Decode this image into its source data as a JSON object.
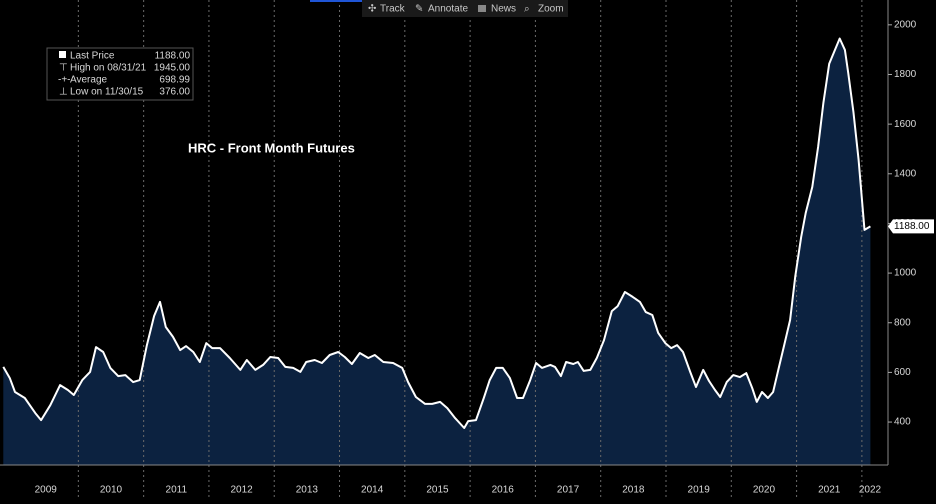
{
  "toolbar": [
    "Track",
    "Annotate",
    "News",
    "Zoom"
  ],
  "chart_data": {
    "type": "area",
    "title": "HRC - Front Month Futures",
    "legend": [
      {
        "name": "Last Price",
        "value": {
          "value": 1188,
          "label": "1188.00"
        }
      },
      {
        "name": "High on 08/31/21",
        "value": {
          "value": 1945,
          "label": "1945.00"
        }
      },
      {
        "name": "Average",
        "value": {
          "value": 698.99,
          "label": "698.99"
        }
      },
      {
        "name": "Low on 11/30/15",
        "value": {
          "value": 376,
          "label": "376.00"
        }
      }
    ],
    "line_color": "#ffffff",
    "fill_color": "#0c2240",
    "x": [
      2008.85,
      2008.95,
      2009.03,
      2009.18,
      2009.34,
      2009.43,
      2009.57,
      2009.72,
      2009.84,
      2009.93,
      2010.06,
      2010.18,
      2010.27,
      2010.38,
      2010.49,
      2010.61,
      2010.72,
      2010.84,
      2010.94,
      2011.05,
      2011.16,
      2011.25,
      2011.34,
      2011.45,
      2011.56,
      2011.65,
      2011.76,
      2011.86,
      2011.96,
      2012.05,
      2012.17,
      2012.32,
      2012.48,
      2012.58,
      2012.71,
      2012.83,
      2012.94,
      2013.06,
      2013.17,
      2013.29,
      2013.4,
      2013.49,
      2013.62,
      2013.73,
      2013.85,
      2013.98,
      2014.08,
      2014.19,
      2014.31,
      2014.44,
      2014.54,
      2014.67,
      2014.82,
      2014.96,
      2015.05,
      2015.17,
      2015.31,
      2015.42,
      2015.54,
      2015.65,
      2015.77,
      2015.91,
      2015.97,
      2016.09,
      2016.21,
      2016.3,
      2016.4,
      2016.5,
      2016.61,
      2016.72,
      2016.81,
      2016.92,
      2017.01,
      2017.1,
      2017.23,
      2017.3,
      2017.39,
      2017.47,
      2017.58,
      2017.65,
      2017.74,
      2017.84,
      2017.94,
      2018.05,
      2018.17,
      2018.26,
      2018.37,
      2018.49,
      2018.6,
      2018.69,
      2018.79,
      2018.88,
      2018.99,
      2019.08,
      2019.17,
      2019.26,
      2019.37,
      2019.46,
      2019.57,
      2019.66,
      2019.75,
      2019.83,
      2019.93,
      2020.03,
      2020.13,
      2020.23,
      2020.32,
      2020.39,
      2020.47,
      2020.56,
      2020.64,
      2020.72,
      2020.81,
      2020.9,
      2020.98,
      2021.07,
      2021.14,
      2021.24,
      2021.33,
      2021.41,
      2021.5,
      2021.66,
      2021.74,
      2021.79,
      2021.87,
      2021.95,
      2022.04,
      2022.13
    ],
    "values": [
      622,
      577,
      521,
      497,
      436,
      408,
      468,
      549,
      529,
      509,
      569,
      602,
      702,
      682,
      618,
      585,
      589,
      561,
      569,
      710,
      827,
      884,
      783,
      743,
      690,
      706,
      682,
      642,
      718,
      698,
      698,
      658,
      610,
      650,
      610,
      630,
      662,
      658,
      622,
      618,
      602,
      642,
      650,
      638,
      670,
      682,
      662,
      634,
      678,
      658,
      670,
      642,
      638,
      618,
      561,
      501,
      473,
      473,
      481,
      456,
      416,
      376,
      404,
      408,
      497,
      569,
      618,
      618,
      577,
      497,
      497,
      569,
      638,
      618,
      630,
      622,
      585,
      642,
      634,
      642,
      606,
      610,
      658,
      730,
      847,
      867,
      924,
      904,
      884,
      843,
      831,
      759,
      718,
      698,
      710,
      682,
      602,
      541,
      610,
      565,
      529,
      501,
      561,
      589,
      581,
      597,
      537,
      481,
      521,
      497,
      521,
      610,
      710,
      811,
      988,
      1146,
      1242,
      1347,
      1508,
      1686,
      1843,
      1945,
      1899,
      1807,
      1650,
      1456,
      1174,
      1188
    ],
    "xlim": [
      2008.8,
      2022.4
    ],
    "xticks": [
      {
        "value": 2009.5,
        "label": "2009"
      },
      {
        "value": 2010.5,
        "label": "2010"
      },
      {
        "value": 2011.5,
        "label": "2011"
      },
      {
        "value": 2012.5,
        "label": "2012"
      },
      {
        "value": 2013.5,
        "label": "2013"
      },
      {
        "value": 2014.5,
        "label": "2014"
      },
      {
        "value": 2015.5,
        "label": "2015"
      },
      {
        "value": 2016.5,
        "label": "2016"
      },
      {
        "value": 2017.5,
        "label": "2017"
      },
      {
        "value": 2018.5,
        "label": "2018"
      },
      {
        "value": 2019.5,
        "label": "2019"
      },
      {
        "value": 2020.5,
        "label": "2020"
      },
      {
        "value": 2021.5,
        "label": "2021"
      },
      {
        "value": 2022.5,
        "label": "2022"
      }
    ],
    "ylim": [
      227,
      2100
    ],
    "yticks": [
      400,
      600,
      800,
      1000,
      1200,
      1400,
      1600,
      1800,
      2000
    ]
  }
}
